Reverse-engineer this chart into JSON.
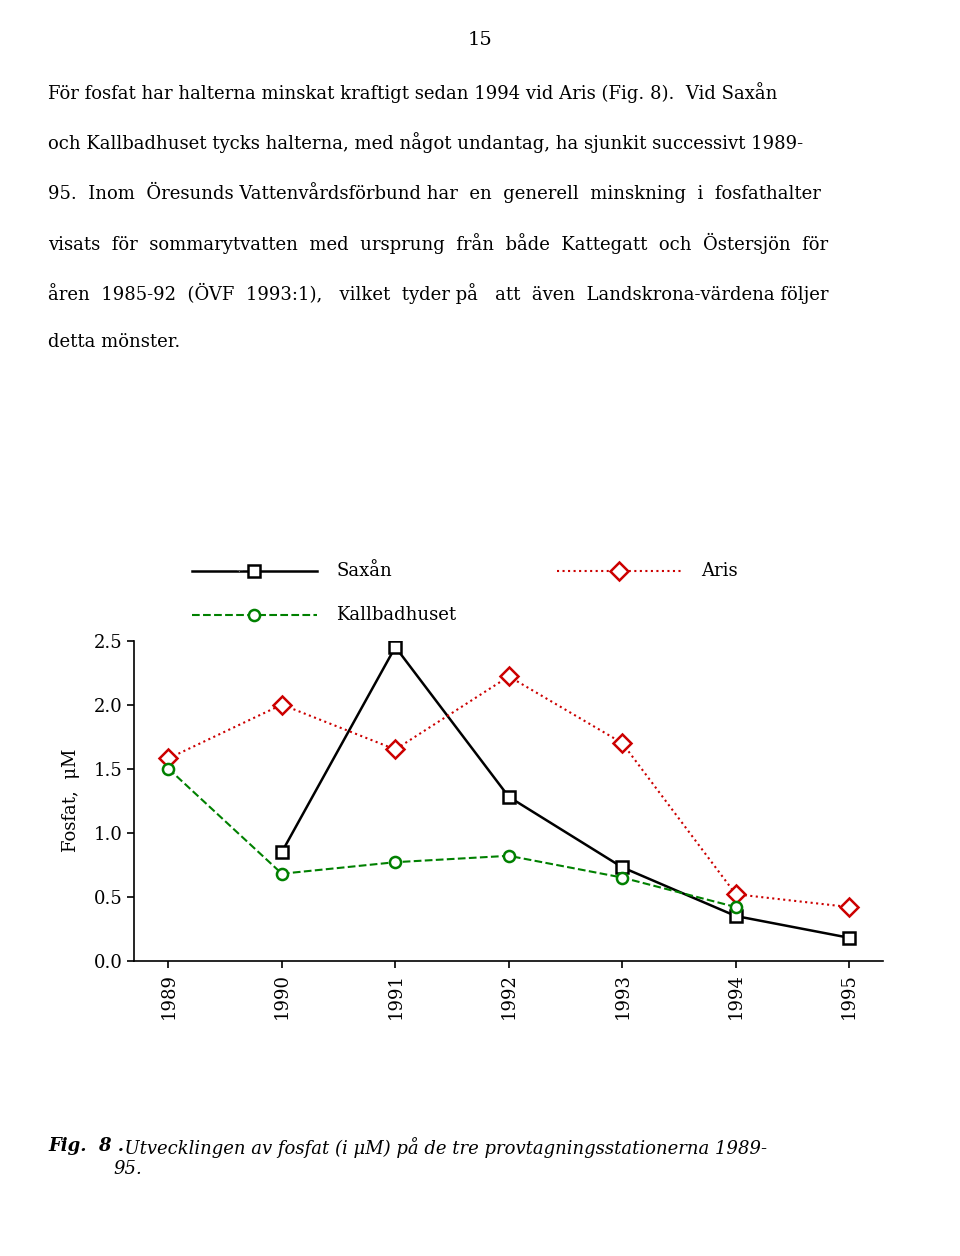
{
  "page_number": "15",
  "body_text": [
    "För fosfat har halterna minskat kraftigt sedan 1994 vid Aris (Fig. 8).  Vid Saxån",
    "och Kallbadhuset tycks halterna, med något undantag, ha sjunkit successivt 1989-",
    "95.  Inom  Öresunds Vattenvårdsförbund har  en  generell  minskning  i  fosfathalter",
    "visats  för  sommarytvatten  med  ursprung  från  både  Kattegatt  och  Östersjön  för",
    "åren  1985-92  (ÖVF  1993:1),   vilket  tyder på   att  även  Landskrona-värdena följer",
    "detta mönster."
  ],
  "caption_bold": "Fig.  8 .",
  "caption_italic": "  Utvecklingen av fosfat (i μM) på de tre provtagningsstationerna 1989-\n95.",
  "years": [
    1989,
    1990,
    1991,
    1992,
    1993,
    1994,
    1995
  ],
  "saxan": [
    null,
    0.85,
    2.45,
    1.28,
    0.73,
    0.35,
    0.18
  ],
  "aris": [
    1.58,
    2.0,
    1.65,
    2.22,
    1.7,
    0.52,
    0.42
  ],
  "kallbadhuset": [
    1.5,
    0.68,
    0.77,
    0.82,
    0.65,
    0.42,
    null
  ],
  "ylabel": "Fosfat,  μM",
  "ylim": [
    0.0,
    2.5
  ],
  "yticks": [
    0.0,
    0.5,
    1.0,
    1.5,
    2.0,
    2.5
  ],
  "saxan_color": "#000000",
  "aris_color": "#cc0000",
  "kallbadhuset_color": "#008000",
  "background_color": "#ffffff",
  "legend_saxan": "Saxån",
  "legend_aris": "Aris",
  "legend_kallbadhuset": "Kallbadhuset"
}
